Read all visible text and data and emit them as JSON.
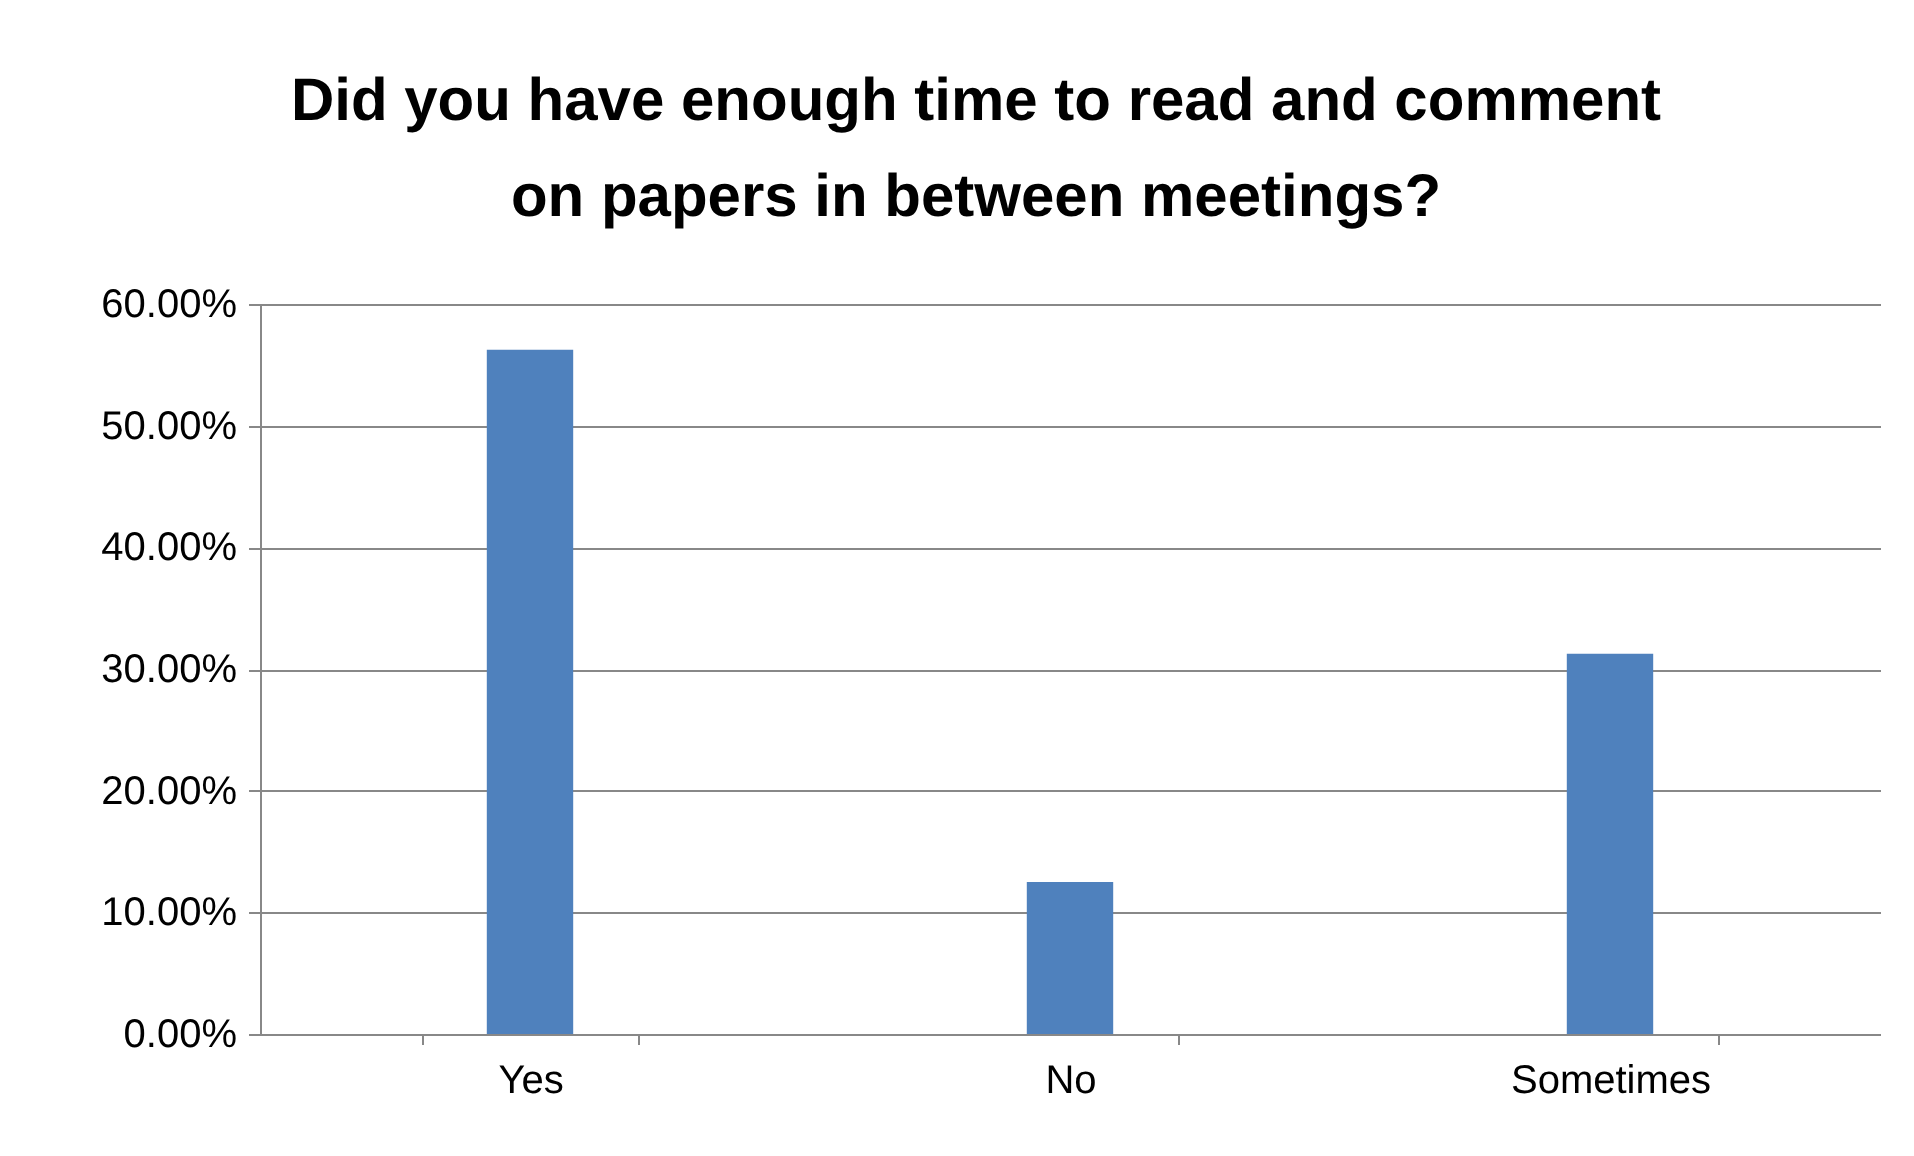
{
  "chart_data": {
    "type": "bar",
    "title": "Did you have enough time to read and comment on papers in between meetings?",
    "categories": [
      "Yes",
      "No",
      "Sometimes"
    ],
    "values": [
      56.25,
      12.5,
      31.25
    ],
    "color": "#4f81bd",
    "ylim": [
      0,
      60
    ],
    "yticks": [
      {
        "value": 0,
        "label": "0.00%"
      },
      {
        "value": 10,
        "label": "10.00%"
      },
      {
        "value": 20,
        "label": "20.00%"
      },
      {
        "value": 30,
        "label": "30.00%"
      },
      {
        "value": 40,
        "label": "40.00%"
      },
      {
        "value": 50,
        "label": "50.00%"
      },
      {
        "value": 60,
        "label": "60.00%"
      }
    ],
    "grid": true,
    "legend": false
  }
}
